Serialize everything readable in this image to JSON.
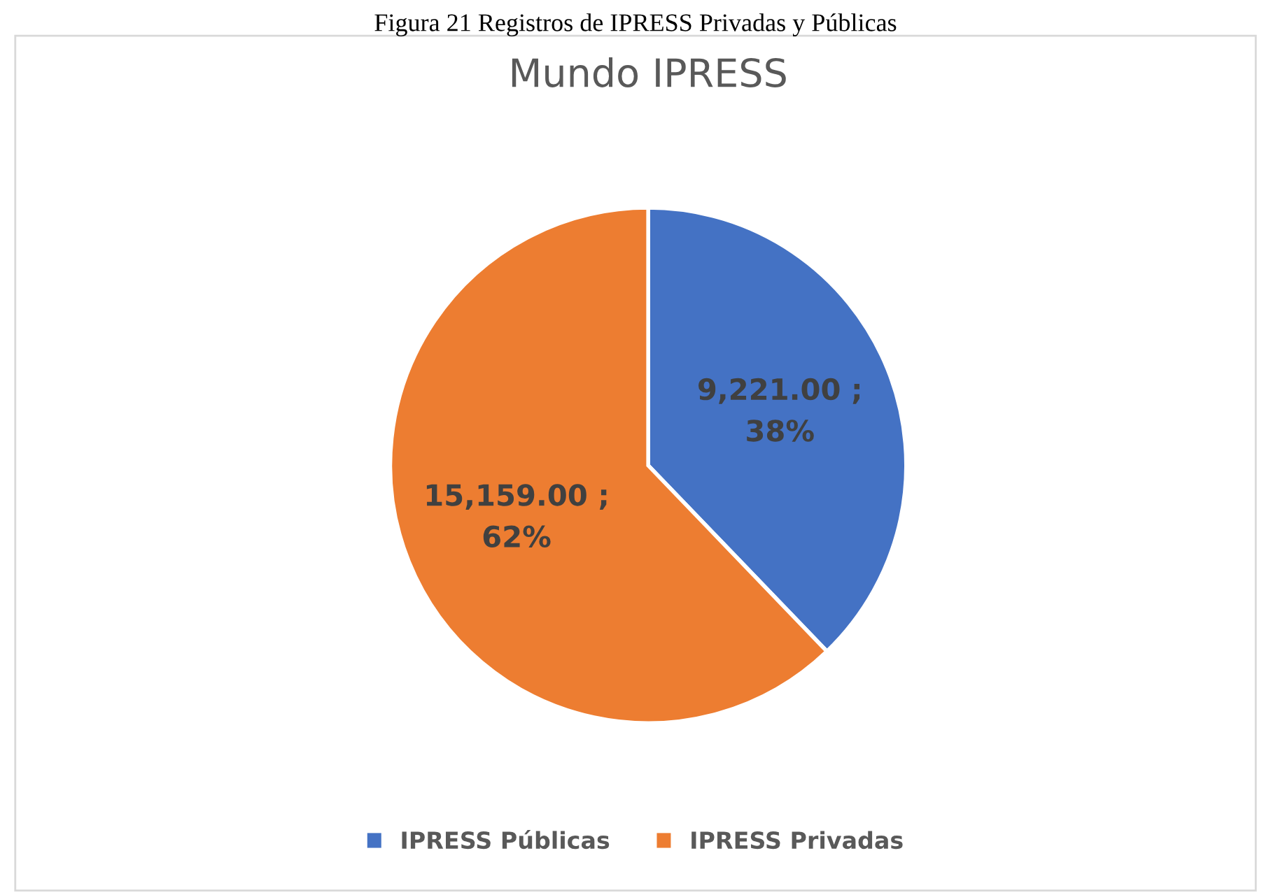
{
  "chart_data": {
    "type": "pie",
    "title": "Mundo IPRESS",
    "annotations": [
      "Figura 21 Registros de IPRESS Privadas y Públicas"
    ],
    "categories": [
      "IPRESS Públicas",
      "IPRESS Privadas"
    ],
    "values": [
      9221,
      15159
    ],
    "colors": [
      "#4472c4",
      "#ed7d31"
    ],
    "value_labels": [
      "9,221.00 ;\n38%",
      "15,159.00 ;\n62%"
    ],
    "legend": "bottom"
  }
}
